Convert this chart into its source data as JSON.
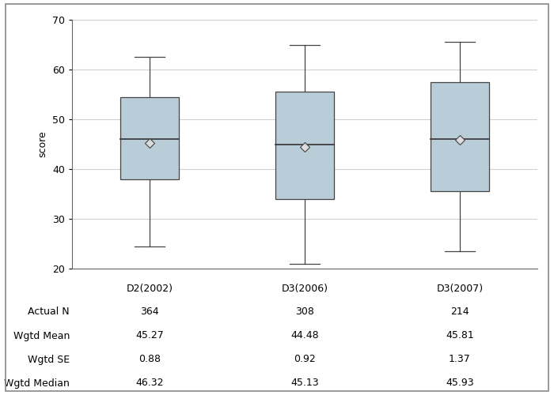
{
  "categories": [
    "D2(2002)",
    "D3(2006)",
    "D3(2007)"
  ],
  "box_data": [
    {
      "q1": 38.0,
      "median": 46.0,
      "q3": 54.5,
      "whisker_low": 24.5,
      "whisker_high": 62.5,
      "mean": 45.27
    },
    {
      "q1": 34.0,
      "median": 45.0,
      "q3": 55.5,
      "whisker_low": 21.0,
      "whisker_high": 65.0,
      "mean": 44.48
    },
    {
      "q1": 35.5,
      "median": 46.0,
      "q3": 57.5,
      "whisker_low": 23.5,
      "whisker_high": 65.5,
      "mean": 45.81
    }
  ],
  "actual_n": [
    364,
    308,
    214
  ],
  "wgtd_mean": [
    45.27,
    44.48,
    45.81
  ],
  "wgtd_se": [
    0.88,
    0.92,
    1.37
  ],
  "wgtd_median": [
    46.32,
    45.13,
    45.93
  ],
  "ylabel": "score",
  "ylim": [
    20,
    70
  ],
  "yticks": [
    20,
    30,
    40,
    50,
    60,
    70
  ],
  "box_facecolor": "#b8cdd8",
  "box_edgecolor": "#444444",
  "whisker_color": "#444444",
  "median_color": "#333333",
  "mean_marker_facecolor": "#dddddd",
  "mean_marker_edgecolor": "#444444",
  "grid_color": "#d0d0d0",
  "bg_color": "#ffffff",
  "table_row_labels": [
    "Actual N",
    "Wgtd Mean",
    "Wgtd SE",
    "Wgtd Median"
  ],
  "box_width": 0.38,
  "positions": [
    1,
    2,
    3
  ],
  "xlim": [
    0.5,
    3.5
  ]
}
